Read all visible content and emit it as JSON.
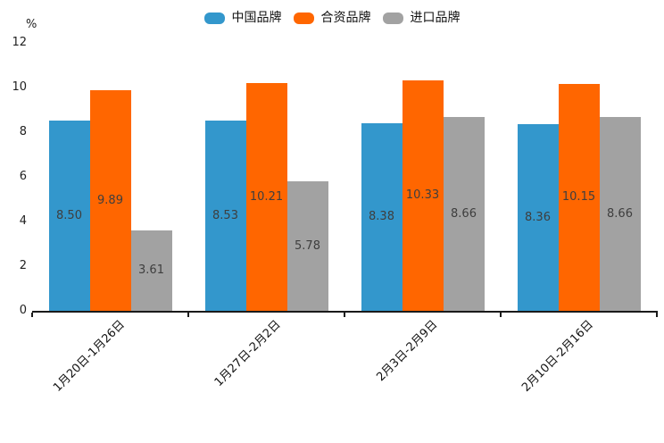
{
  "chart_data": {
    "type": "bar",
    "title": "",
    "unit_label": "%",
    "categories": [
      "1月20日-1月26日",
      "1月27日-2月2日",
      "2月3日-2月9日",
      "2月10日-2月16日"
    ],
    "series": [
      {
        "name": "中国品牌",
        "color": "#3397CC",
        "values": [
          8.5,
          8.53,
          8.38,
          8.36
        ]
      },
      {
        "name": "合资品牌",
        "color": "#FF6600",
        "values": [
          9.89,
          10.21,
          10.33,
          10.15
        ]
      },
      {
        "name": "进口品牌",
        "color": "#A2A2A2",
        "values": [
          3.61,
          5.78,
          8.66,
          8.66
        ]
      }
    ],
    "value_label_format": "2dp",
    "y_ticks": [
      0,
      2,
      4,
      6,
      8,
      10,
      12
    ],
    "ylim": [
      0,
      12
    ],
    "xlabel": "",
    "ylabel": "%",
    "legend_position": "top",
    "grid": false,
    "axis_color": "#1a1a1a",
    "value_label_color": "#3e3e3e"
  }
}
